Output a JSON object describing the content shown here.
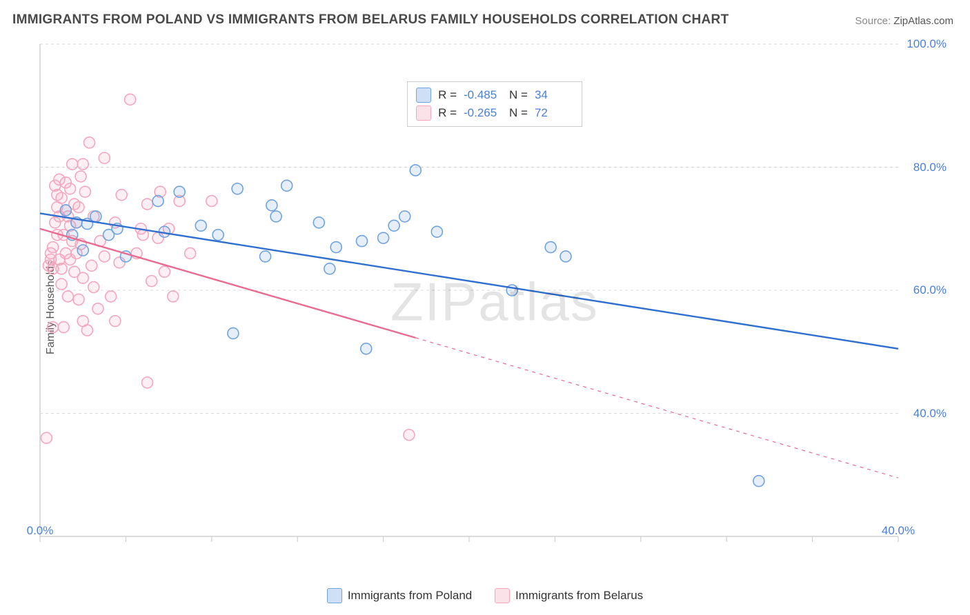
{
  "title": "IMMIGRANTS FROM POLAND VS IMMIGRANTS FROM BELARUS FAMILY HOUSEHOLDS CORRELATION CHART",
  "source": {
    "label": "Source:",
    "site": "ZipAtlas.com"
  },
  "watermark": {
    "prefix": "ZIP",
    "suffix": "atlas"
  },
  "chart": {
    "type": "scatter",
    "ylabel": "Family Households",
    "background_color": "#ffffff",
    "grid_color": "#d8d8d8",
    "axis_color": "#d0d0d0",
    "tick_color": "#d0d0d0",
    "xlim": [
      0,
      40
    ],
    "ylim": [
      20,
      100
    ],
    "yticks": [
      40,
      60,
      80,
      100
    ],
    "ytick_labels": [
      "40.0%",
      "60.0%",
      "80.0%",
      "100.0%"
    ],
    "xticks": [
      0,
      40
    ],
    "xtick_labels": [
      "0.0%",
      "40.0%"
    ],
    "xminorgrid": [
      4,
      8,
      12,
      16,
      20,
      24,
      28,
      32,
      36
    ],
    "marker_radius": 8,
    "marker_fill_opacity": 0.18,
    "marker_stroke_width": 1.6,
    "trend_line_width": 2.4,
    "series": [
      {
        "id": "poland",
        "label": "Immigrants from Poland",
        "color": "#6fa3e0",
        "line_color": "#2f6fd0",
        "R": "-0.485",
        "N": "34",
        "trend_y_start": 72.5,
        "trend_y_end": 50.5,
        "trend_x_solid_end": 40,
        "points": [
          [
            1.2,
            73.0
          ],
          [
            1.7,
            71.0
          ],
          [
            1.5,
            69.0
          ],
          [
            2.2,
            70.8
          ],
          [
            2.0,
            66.5
          ],
          [
            2.6,
            72.0
          ],
          [
            3.2,
            69.0
          ],
          [
            3.6,
            70.0
          ],
          [
            4.0,
            65.5
          ],
          [
            5.5,
            74.5
          ],
          [
            5.8,
            69.5
          ],
          [
            6.5,
            76.0
          ],
          [
            7.5,
            70.5
          ],
          [
            8.3,
            69.0
          ],
          [
            9.0,
            53.0
          ],
          [
            9.2,
            76.5
          ],
          [
            10.5,
            65.5
          ],
          [
            10.8,
            73.8
          ],
          [
            11.0,
            72.0
          ],
          [
            11.5,
            77.0
          ],
          [
            13.0,
            71.0
          ],
          [
            13.8,
            67.0
          ],
          [
            13.5,
            63.5
          ],
          [
            15.0,
            68.0
          ],
          [
            15.2,
            50.5
          ],
          [
            16.0,
            68.5
          ],
          [
            16.5,
            70.5
          ],
          [
            17.0,
            72.0
          ],
          [
            17.5,
            79.5
          ],
          [
            18.5,
            69.5
          ],
          [
            22.0,
            60.0
          ],
          [
            23.8,
            67.0
          ],
          [
            24.5,
            65.5
          ],
          [
            33.5,
            29.0
          ]
        ]
      },
      {
        "id": "belarus",
        "label": "Immigrants from Belarus",
        "color": "#f4a6bb",
        "line_color": "#e96b8f",
        "R": "-0.265",
        "N": "72",
        "trend_y_start": 70.0,
        "trend_y_end": 29.5,
        "trend_x_solid_end": 17.5,
        "points": [
          [
            0.4,
            64.0
          ],
          [
            0.5,
            65.0
          ],
          [
            0.5,
            66.0
          ],
          [
            0.6,
            63.5
          ],
          [
            0.6,
            67.0
          ],
          [
            0.7,
            71.0
          ],
          [
            0.7,
            77.0
          ],
          [
            0.8,
            75.5
          ],
          [
            0.8,
            73.5
          ],
          [
            0.8,
            69.0
          ],
          [
            0.9,
            65.0
          ],
          [
            0.9,
            72.0
          ],
          [
            0.9,
            78.0
          ],
          [
            1.0,
            75.0
          ],
          [
            1.0,
            63.5
          ],
          [
            1.0,
            61.0
          ],
          [
            1.1,
            54.0
          ],
          [
            1.1,
            69.0
          ],
          [
            1.2,
            77.5
          ],
          [
            1.2,
            73.0
          ],
          [
            1.2,
            66.0
          ],
          [
            1.3,
            59.0
          ],
          [
            1.3,
            72.0
          ],
          [
            1.4,
            76.5
          ],
          [
            1.4,
            70.5
          ],
          [
            1.4,
            65.0
          ],
          [
            1.5,
            80.5
          ],
          [
            1.5,
            68.0
          ],
          [
            1.6,
            63.0
          ],
          [
            1.6,
            74.0
          ],
          [
            1.7,
            71.0
          ],
          [
            1.7,
            66.0
          ],
          [
            1.8,
            58.5
          ],
          [
            1.8,
            73.5
          ],
          [
            1.9,
            78.5
          ],
          [
            1.9,
            67.5
          ],
          [
            2.0,
            55.0
          ],
          [
            2.0,
            62.0
          ],
          [
            2.1,
            76.0
          ],
          [
            2.2,
            53.5
          ],
          [
            2.3,
            84.0
          ],
          [
            2.4,
            64.0
          ],
          [
            2.5,
            60.5
          ],
          [
            2.5,
            72.0
          ],
          [
            2.7,
            57.0
          ],
          [
            2.8,
            68.0
          ],
          [
            3.0,
            81.5
          ],
          [
            3.0,
            65.5
          ],
          [
            3.3,
            59.0
          ],
          [
            3.5,
            71.0
          ],
          [
            3.5,
            55.0
          ],
          [
            3.7,
            64.5
          ],
          [
            3.8,
            75.5
          ],
          [
            4.2,
            91.0
          ],
          [
            4.5,
            66.0
          ],
          [
            4.7,
            70.0
          ],
          [
            4.8,
            69.0
          ],
          [
            5.0,
            74.0
          ],
          [
            5.0,
            45.0
          ],
          [
            5.2,
            61.5
          ],
          [
            5.5,
            68.5
          ],
          [
            5.6,
            76.0
          ],
          [
            5.8,
            63.0
          ],
          [
            6.0,
            70.0
          ],
          [
            6.2,
            59.0
          ],
          [
            6.5,
            74.5
          ],
          [
            7.0,
            66.0
          ],
          [
            8.0,
            74.5
          ],
          [
            0.3,
            36.0
          ],
          [
            0.6,
            54.0
          ],
          [
            2.0,
            80.5
          ],
          [
            17.2,
            36.5
          ]
        ]
      }
    ]
  },
  "legend_bottom": [
    {
      "series": "poland",
      "label": "Immigrants from Poland"
    },
    {
      "series": "belarus",
      "label": "Immigrants from Belarus"
    }
  ]
}
